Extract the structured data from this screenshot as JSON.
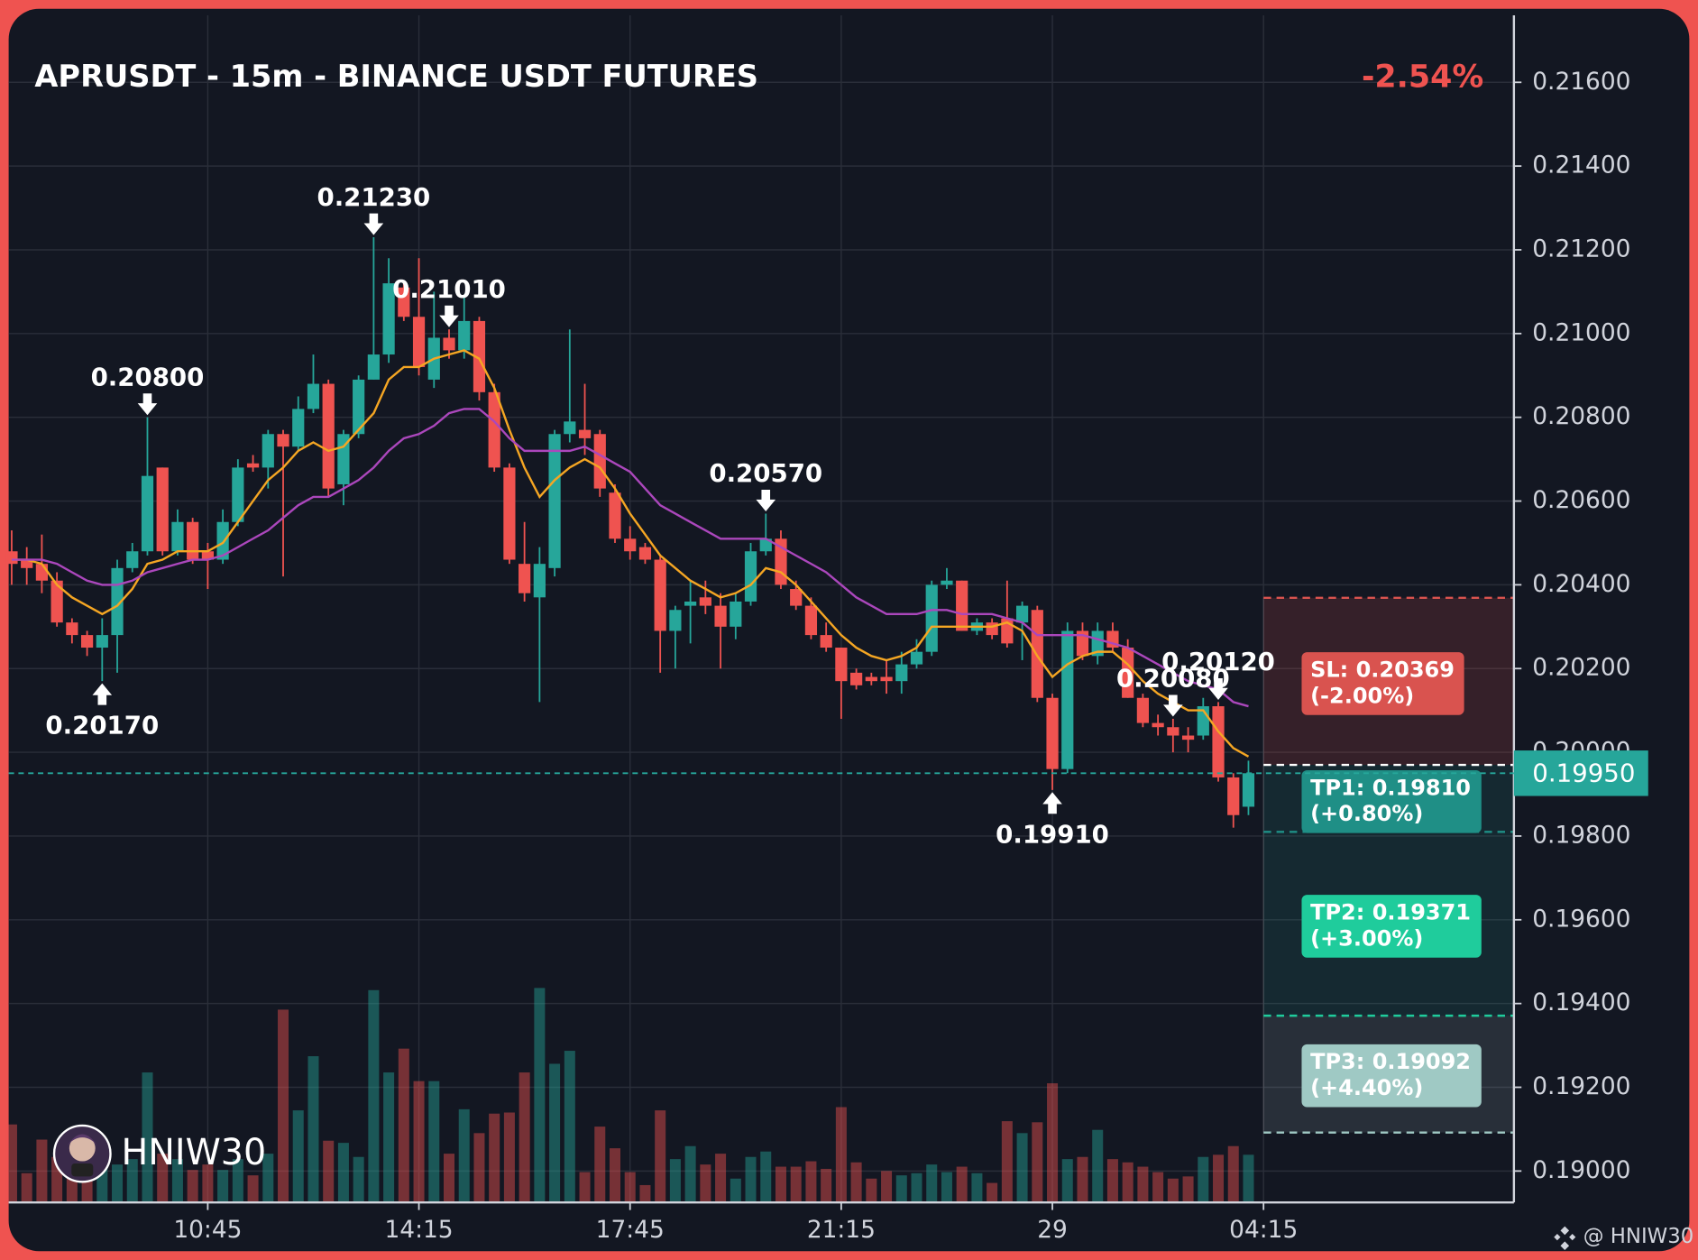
{
  "chart_data": {
    "type": "candlestick",
    "title": "APRUSDT - 15m - BINANCE USDT FUTURES",
    "change": "-2.54%",
    "watermark": "HNIW30",
    "credit": "@ HNIW30",
    "up_color": "#26a69a",
    "down_color": "#ef5350",
    "open": [
      0.2048,
      0.2046,
      0.2045,
      0.2041,
      0.2031,
      0.2028,
      0.2025,
      0.2028,
      0.2044,
      0.2048,
      0.2068,
      0.2048,
      0.2055,
      0.2048,
      0.2046,
      0.2055,
      0.2069,
      0.2068,
      0.2076,
      0.2073,
      0.2082,
      0.2088,
      0.2064,
      0.2076,
      0.2089,
      0.2095,
      0.2111,
      0.2104,
      0.2089,
      0.2099,
      0.2096,
      0.2103,
      0.2086,
      0.2068,
      0.2045,
      0.2037,
      0.2044,
      0.2076,
      0.2077,
      0.2076,
      0.2062,
      0.2051,
      0.2049,
      0.2046,
      0.2029,
      0.2035,
      0.2037,
      0.2035,
      0.203,
      0.2036,
      0.2048,
      0.2051,
      0.2039,
      0.2035,
      0.2028,
      0.2025,
      0.2019,
      0.2018,
      0.2018,
      0.2017,
      0.2021,
      0.2024,
      0.204,
      0.2041,
      0.2029,
      0.2031,
      0.2032,
      0.2031,
      0.2034,
      0.2013,
      0.1996,
      0.2029,
      0.2023,
      0.2029,
      0.2025,
      0.2013,
      0.2007,
      0.2006,
      0.2004,
      0.2004,
      0.2011,
      0.1994,
      0.1987
    ],
    "high": [
      0.2053,
      0.2049,
      0.2052,
      0.2043,
      0.2032,
      0.2029,
      0.2032,
      0.2046,
      0.205,
      0.208,
      0.2068,
      0.2058,
      0.2056,
      0.205,
      0.2058,
      0.207,
      0.2071,
      0.2077,
      0.2077,
      0.2085,
      0.2095,
      0.2089,
      0.2077,
      0.209,
      0.2123,
      0.2118,
      0.2112,
      0.2118,
      0.211,
      0.2101,
      0.2109,
      0.2104,
      0.2088,
      0.2069,
      0.2055,
      0.2049,
      0.2077,
      0.2101,
      0.2088,
      0.2077,
      0.2064,
      0.2054,
      0.205,
      0.2047,
      0.2035,
      0.2041,
      0.2041,
      0.2038,
      0.2038,
      0.205,
      0.2057,
      0.2053,
      0.2041,
      0.2037,
      0.2031,
      0.2025,
      0.202,
      0.2019,
      0.2022,
      0.2024,
      0.2027,
      0.2041,
      0.2044,
      0.2041,
      0.2032,
      0.2032,
      0.2041,
      0.2036,
      0.2035,
      0.2014,
      0.2031,
      0.2031,
      0.2031,
      0.2031,
      0.2027,
      0.2014,
      0.2009,
      0.2008,
      0.2006,
      0.2013,
      0.2012,
      0.1995,
      0.1998
    ],
    "low": [
      0.204,
      0.204,
      0.2038,
      0.203,
      0.2026,
      0.2023,
      0.2017,
      0.2019,
      0.2043,
      0.2047,
      0.2047,
      0.2047,
      0.2045,
      0.2039,
      0.2045,
      0.2054,
      0.2067,
      0.2063,
      0.2042,
      0.2072,
      0.2081,
      0.2061,
      0.2059,
      0.2075,
      0.2089,
      0.2093,
      0.2103,
      0.209,
      0.2087,
      0.2094,
      0.2094,
      0.2084,
      0.2067,
      0.2045,
      0.2036,
      0.2012,
      0.2042,
      0.2074,
      0.2071,
      0.2061,
      0.205,
      0.2046,
      0.2045,
      0.2019,
      0.202,
      0.2026,
      0.2033,
      0.202,
      0.2027,
      0.2035,
      0.2047,
      0.2039,
      0.2034,
      0.2027,
      0.2024,
      0.2008,
      0.2015,
      0.2016,
      0.2014,
      0.2014,
      0.202,
      0.2023,
      0.2039,
      0.2029,
      0.2028,
      0.2027,
      0.2025,
      0.2022,
      0.2012,
      0.1991,
      0.1995,
      0.2022,
      0.2021,
      0.2024,
      0.2013,
      0.2006,
      0.2004,
      0.2,
      0.2,
      0.2003,
      0.1993,
      0.1982,
      0.1985
    ],
    "close": [
      0.2045,
      0.2044,
      0.2041,
      0.2031,
      0.2028,
      0.2025,
      0.2028,
      0.2044,
      0.2048,
      0.2066,
      0.2048,
      0.2055,
      0.2046,
      0.2046,
      0.2055,
      0.2068,
      0.2068,
      0.2076,
      0.2073,
      0.2082,
      0.2088,
      0.2063,
      0.2076,
      0.2089,
      0.2095,
      0.2112,
      0.2104,
      0.2092,
      0.2099,
      0.2096,
      0.2103,
      0.2086,
      0.2068,
      0.2046,
      0.2038,
      0.2045,
      0.2076,
      0.2079,
      0.2075,
      0.2063,
      0.2051,
      0.2048,
      0.2046,
      0.2029,
      0.2034,
      0.2036,
      0.2035,
      0.203,
      0.2036,
      0.2048,
      0.2051,
      0.204,
      0.2035,
      0.2028,
      0.2025,
      0.2017,
      0.2016,
      0.2017,
      0.2017,
      0.2021,
      0.2024,
      0.204,
      0.2041,
      0.2029,
      0.2031,
      0.2028,
      0.2026,
      0.2035,
      0.2013,
      0.1996,
      0.2029,
      0.2023,
      0.2029,
      0.2025,
      0.2013,
      0.2007,
      0.2006,
      0.2004,
      0.2003,
      0.2011,
      0.1994,
      0.1985,
      0.1995
    ],
    "volume": [
      72,
      27,
      58,
      42,
      48,
      32,
      55,
      35,
      40,
      120,
      45,
      40,
      30,
      35,
      30,
      40,
      25,
      45,
      178,
      85,
      135,
      57,
      55,
      42,
      196,
      120,
      142,
      112,
      112,
      45,
      86,
      64,
      82,
      83,
      120,
      198,
      128,
      140,
      28,
      70,
      50,
      28,
      16,
      85,
      40,
      52,
      35,
      45,
      22,
      42,
      47,
      33,
      33,
      38,
      31,
      88,
      37,
      22,
      29,
      25,
      27,
      35,
      28,
      33,
      27,
      18,
      75,
      64,
      74,
      110,
      40,
      42,
      67,
      40,
      37,
      33,
      28,
      22,
      24,
      42,
      44,
      52,
      44
    ],
    "lines": [
      {
        "color": "#f5a623",
        "values": [
          0.2046,
          0.2046,
          0.2045,
          0.204,
          0.2037,
          0.2035,
          0.2033,
          0.2035,
          0.2039,
          0.2045,
          0.2046,
          0.2048,
          0.2048,
          0.2048,
          0.205,
          0.2055,
          0.206,
          0.2065,
          0.2068,
          0.2072,
          0.2074,
          0.2072,
          0.2073,
          0.2077,
          0.2081,
          0.2089,
          0.2092,
          0.2092,
          0.2094,
          0.2095,
          0.2096,
          0.2094,
          0.2087,
          0.2077,
          0.2068,
          0.2061,
          0.2065,
          0.2068,
          0.207,
          0.2068,
          0.2063,
          0.2057,
          0.2052,
          0.2047,
          0.2044,
          0.2041,
          0.2039,
          0.2037,
          0.2038,
          0.204,
          0.2044,
          0.2043,
          0.204,
          0.2036,
          0.2032,
          0.2028,
          0.2025,
          0.2023,
          0.2022,
          0.2023,
          0.2025,
          0.203,
          0.203,
          0.203,
          0.203,
          0.203,
          0.2031,
          0.2029,
          0.2023,
          0.2018,
          0.2021,
          0.2023,
          0.2024,
          0.2024,
          0.2021,
          0.2017,
          0.2014,
          0.2012,
          0.201,
          0.201,
          0.2005,
          0.2001,
          0.1999
        ]
      },
      {
        "color": "#ab47bc",
        "values": [
          0.2046,
          0.2046,
          0.2046,
          0.2045,
          0.2043,
          0.2041,
          0.204,
          0.204,
          0.2041,
          0.2043,
          0.2044,
          0.2045,
          0.2046,
          0.2046,
          0.2047,
          0.2049,
          0.2051,
          0.2053,
          0.2056,
          0.2059,
          0.2061,
          0.2061,
          0.2063,
          0.2065,
          0.2068,
          0.2072,
          0.2075,
          0.2076,
          0.2078,
          0.2081,
          0.2082,
          0.2082,
          0.2079,
          0.2075,
          0.2072,
          0.2072,
          0.2072,
          0.2072,
          0.2073,
          0.2071,
          0.2069,
          0.2067,
          0.2063,
          0.2059,
          0.2057,
          0.2055,
          0.2053,
          0.2051,
          0.2051,
          0.2051,
          0.2051,
          0.2049,
          0.2047,
          0.2045,
          0.2043,
          0.204,
          0.2037,
          0.2035,
          0.2033,
          0.2033,
          0.2033,
          0.2034,
          0.2034,
          0.2033,
          0.2033,
          0.2033,
          0.2032,
          0.2031,
          0.2028,
          0.2028,
          0.2028,
          0.2028,
          0.2027,
          0.2026,
          0.2025,
          0.2023,
          0.2021,
          0.2019,
          0.2017,
          0.2016,
          0.2015,
          0.2012,
          0.2011
        ]
      }
    ],
    "ylim": [
      0.18925,
      0.2176
    ],
    "yticks": [
      {
        "value": 0.216,
        "label": "0.21600"
      },
      {
        "value": 0.214,
        "label": "0.21400"
      },
      {
        "value": 0.212,
        "label": "0.21200"
      },
      {
        "value": 0.21,
        "label": "0.21000"
      },
      {
        "value": 0.208,
        "label": "0.20800"
      },
      {
        "value": 0.206,
        "label": "0.20600"
      },
      {
        "value": 0.204,
        "label": "0.20400"
      },
      {
        "value": 0.202,
        "label": "0.20200"
      },
      {
        "value": 0.2,
        "label": "0.20000"
      },
      {
        "value": 0.198,
        "label": "0.19800"
      },
      {
        "value": 0.196,
        "label": "0.19600"
      },
      {
        "value": 0.194,
        "label": "0.19400"
      },
      {
        "value": 0.192,
        "label": "0.19200"
      },
      {
        "value": 0.19,
        "label": "0.19000"
      }
    ],
    "xlim": [
      -0.2,
      99.6
    ],
    "xticks": [
      {
        "value": 13,
        "label": "10:45"
      },
      {
        "value": 27,
        "label": "14:15"
      },
      {
        "value": 41,
        "label": "17:45"
      },
      {
        "value": 55,
        "label": "21:15"
      },
      {
        "value": 69,
        "label": "29"
      },
      {
        "value": 83,
        "label": "04:15"
      }
    ],
    "grid": true,
    "last_price": {
      "value": 0.1995,
      "label": "0.19950"
    },
    "entry": 0.1997,
    "levels": [
      {
        "label": "SL: 0.20369",
        "note": "(-2.00%)",
        "value": 0.20369,
        "color": "#d9534f"
      },
      {
        "label": "TP1: 0.19810",
        "note": "(+0.80%)",
        "value": 0.1981,
        "color": "#1f8f86"
      },
      {
        "label": "TP2: 0.19371",
        "note": "(+3.00%)",
        "value": 0.19371,
        "color": "#1fcc9c"
      },
      {
        "label": "TP3: 0.19092",
        "note": "(+4.40%)",
        "value": 0.19092,
        "color": "#9fc9c4"
      }
    ],
    "annotations": [
      "0.20800",
      "0.21230",
      "0.21010",
      "0.20570",
      "0.20170",
      "0.20120",
      "0.20080",
      "0.19910"
    ]
  }
}
